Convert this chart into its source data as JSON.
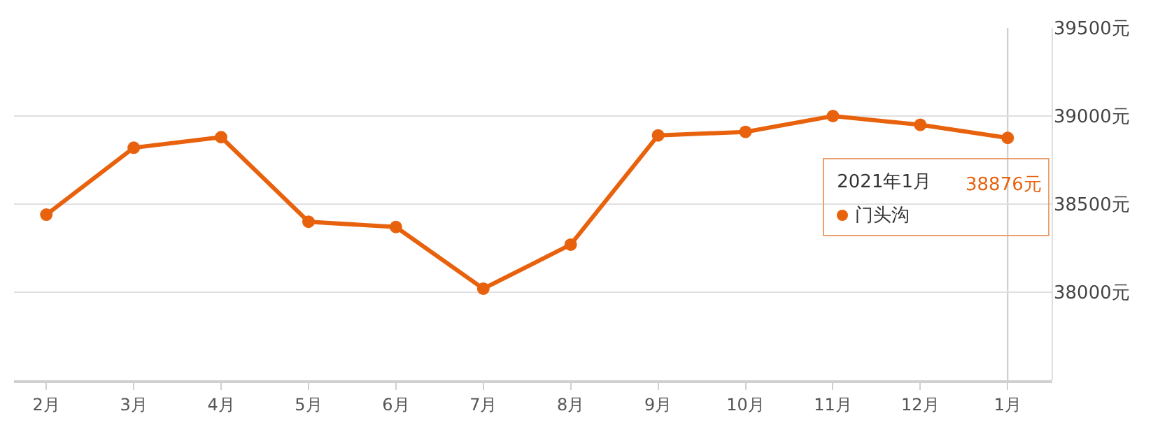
{
  "chart_data": {
    "type": "line",
    "categories": [
      "2月",
      "3月",
      "4月",
      "5月",
      "6月",
      "7月",
      "8月",
      "9月",
      "10月",
      "11月",
      "12月",
      "1月"
    ],
    "series": [
      {
        "name": "门头沟",
        "color": "#e8620e",
        "values": [
          38440,
          38820,
          38880,
          38400,
          38370,
          38020,
          38270,
          38890,
          38910,
          39000,
          38950,
          38876
        ],
        "value_labels": [
          null,
          null,
          null,
          null,
          null,
          null,
          null,
          null,
          null,
          null,
          null,
          "38876元"
        ]
      }
    ],
    "ylim": [
      37500,
      39500
    ],
    "yticks": [
      {
        "value": 38000,
        "label": "38000元"
      },
      {
        "value": 38500,
        "label": "38500元"
      },
      {
        "value": 39000,
        "label": "39000元"
      },
      {
        "value": 39500,
        "label": "39500元"
      }
    ],
    "grid": "y",
    "marker": "circle",
    "line_style": "solid",
    "legend": "right",
    "ref_lines": [
      {
        "axis": "x",
        "value": "1月",
        "color": "#c8c8c8"
      }
    ],
    "annotations": [
      "2021年1月"
    ]
  }
}
